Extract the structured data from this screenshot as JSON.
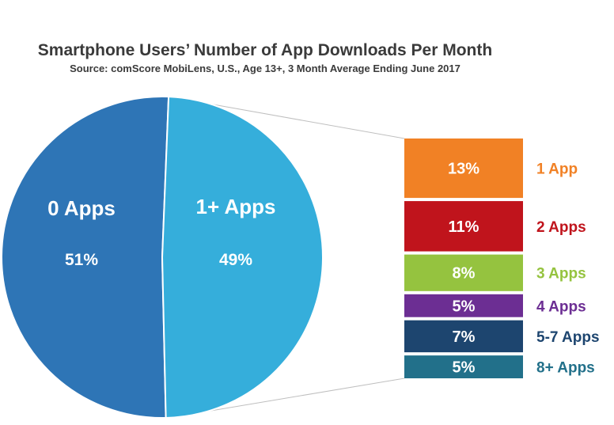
{
  "chart_data": {
    "type": "pie",
    "title": "Smartphone Users’ Number of App Downloads Per Month",
    "subtitle": "Source: comScore MobiLens, U.S., Age 13+, 3 Month Average Ending June 2017",
    "pie": [
      {
        "label": "0 Apps",
        "value": 51,
        "value_label": "51%",
        "color": "#2e75b6"
      },
      {
        "label": "1+ Apps",
        "value": 49,
        "value_label": "49%",
        "color": "#35aedb"
      }
    ],
    "breakdown": {
      "type": "stacked-bar",
      "of": "1+ Apps",
      "segments": [
        {
          "label": "1 App",
          "value": 13,
          "value_label": "13%",
          "color": "#f18125"
        },
        {
          "label": "2 Apps",
          "value": 11,
          "value_label": "11%",
          "color": "#c0141c"
        },
        {
          "label": "3 Apps",
          "value": 8,
          "value_label": "8%",
          "color": "#95c33f"
        },
        {
          "label": "4 Apps",
          "value": 5,
          "value_label": "5%",
          "color": "#6c2e93"
        },
        {
          "label": "5-7 Apps",
          "value": 7,
          "value_label": "7%",
          "color": "#1d456f"
        },
        {
          "label": "8+ Apps",
          "value": 5,
          "value_label": "5%",
          "color": "#22708a"
        }
      ]
    }
  }
}
